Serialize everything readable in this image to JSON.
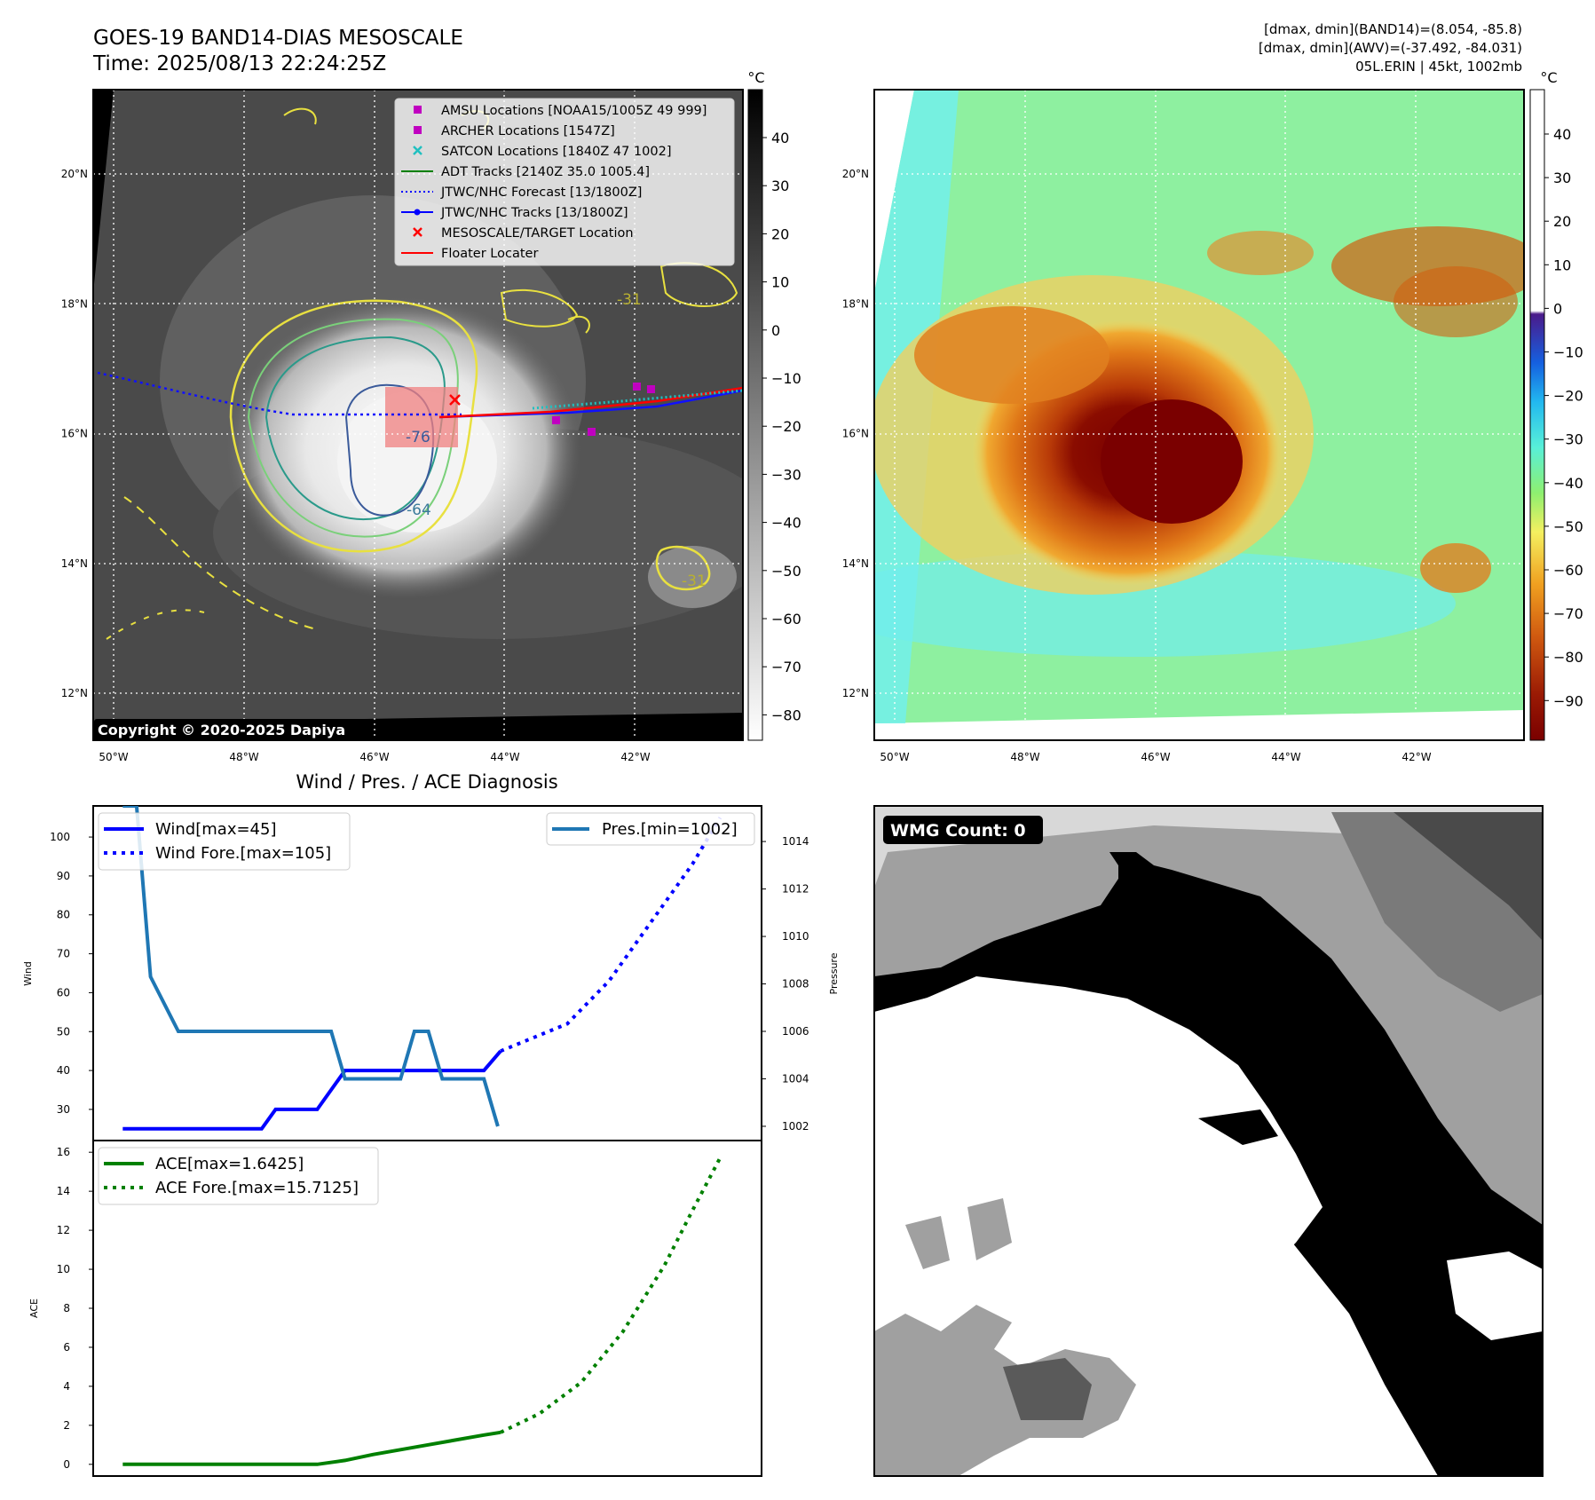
{
  "header": {
    "title_line1": "GOES-19 BAND14-DIAS MESOSCALE",
    "title_line2": "Time: 2025/08/13 22:24:25Z",
    "stats_line1": "[dmax, dmin](BAND14)=(8.054, -85.8)",
    "stats_line2": "[dmax, dmin](AWV)=(-37.492, -84.031)",
    "stats_line3": "05L.ERIN | 45kt, 1002mb"
  },
  "map_common": {
    "lon_labels": [
      "50°W",
      "48°W",
      "46°W",
      "44°W",
      "42°W"
    ],
    "lat_labels": [
      "20°N",
      "18°N",
      "16°N",
      "14°N",
      "12°N"
    ],
    "grid": true
  },
  "ir_map": {
    "copyright": "Copyright © 2020-2025 Dapiya",
    "colorbar_unit": "°C",
    "colorbar_ticks": [
      "40",
      "30",
      "20",
      "10",
      "0",
      "−10",
      "−20",
      "−30",
      "−40",
      "−50",
      "−60",
      "−70",
      "−80"
    ],
    "contour_labels": [
      "-64",
      "-31",
      "-31",
      "-76"
    ],
    "legend": [
      {
        "label": "AMSU Locations [NOAA15/1005Z 49 999]",
        "color": "#c000c0",
        "marker": "square"
      },
      {
        "label": "ARCHER Locations [1547Z]",
        "color": "#c000c0",
        "marker": "square"
      },
      {
        "label": "SATCON Locations [1840Z 47 1002]",
        "color": "#20c0c0",
        "marker": "x"
      },
      {
        "label": "ADT Tracks [2140Z 35.0 1005.4]",
        "color": "#008000",
        "marker": "line"
      },
      {
        "label": "JTWC/NHC Forecast [13/1800Z]",
        "color": "#0000ff",
        "marker": "dotted"
      },
      {
        "label": "JTWC/NHC Tracks [13/1800Z]",
        "color": "#0000ff",
        "marker": "line-dot"
      },
      {
        "label": "MESOSCALE/TARGET Location",
        "color": "#ff0000",
        "marker": "x"
      },
      {
        "label": "Floater Locater",
        "color": "#ff0000",
        "marker": "line"
      }
    ]
  },
  "color_map": {
    "colorbar_unit": "°C",
    "colorbar_ticks": [
      "40",
      "30",
      "20",
      "10",
      "0",
      "−10",
      "−20",
      "−30",
      "−40",
      "−50",
      "−60",
      "−70",
      "−80",
      "−90"
    ]
  },
  "wmg_panel": {
    "label": "WMG Count: 0"
  },
  "chart_data": [
    {
      "type": "line",
      "title": "Wind / Pres. / ACE Diagnosis",
      "ylabel": "Wind",
      "y2label": "Pressure",
      "ylim": [
        22,
        108
      ],
      "y2lim": [
        1001.4,
        1015.5
      ],
      "yticks": [
        30,
        40,
        50,
        60,
        70,
        80,
        90,
        100
      ],
      "y2ticks": [
        1002,
        1004,
        1006,
        1008,
        1010,
        1012,
        1014
      ],
      "x": [
        0,
        1,
        2,
        3,
        4,
        5,
        6,
        7,
        8,
        9,
        10,
        11,
        12,
        13,
        14,
        15,
        16,
        17,
        18,
        19,
        20,
        21,
        22
      ],
      "series": [
        {
          "name": "Wind[max=45]",
          "axis": "left",
          "style": "solid",
          "color": "#0000ff",
          "x": [
            1,
            6,
            6.5,
            8,
            8,
            9,
            14,
            14.6
          ],
          "y": [
            25,
            25,
            30,
            30,
            30,
            40,
            40,
            45
          ]
        },
        {
          "name": "Wind Fore.[max=105]",
          "axis": "left",
          "style": "dotted",
          "color": "#0000ff",
          "x": [
            14.6,
            17,
            18.5,
            20,
            21.5,
            22.5
          ],
          "y": [
            45,
            52,
            63,
            78,
            93,
            105
          ]
        },
        {
          "name": "Pres.[min=1002]",
          "axis": "right",
          "style": "solid",
          "color": "#1f77b4",
          "x": [
            1,
            1.5,
            2,
            3,
            4,
            5,
            6.5,
            7,
            8,
            8.5,
            9,
            10,
            11,
            11.5,
            12,
            12.5,
            13,
            14,
            14.5
          ],
          "y": [
            1015.5,
            1015.5,
            1008.3,
            1006,
            1006,
            1006,
            1006,
            1006,
            1006,
            1006,
            1004,
            1004,
            1004,
            1006,
            1006,
            1004,
            1004,
            1004,
            1002
          ]
        }
      ]
    },
    {
      "type": "line",
      "ylabel": "ACE",
      "ylim": [
        -0.6,
        16.6
      ],
      "yticks": [
        0,
        2,
        4,
        6,
        8,
        10,
        12,
        14,
        16
      ],
      "series": [
        {
          "name": "ACE[max=1.6425]",
          "style": "solid",
          "color": "#008000",
          "x": [
            1,
            3,
            5,
            6.5,
            8,
            9,
            10,
            12,
            14,
            14.6
          ],
          "y": [
            0,
            0,
            0,
            0,
            0,
            0.2,
            0.5,
            1.0,
            1.5,
            1.64
          ]
        },
        {
          "name": "ACE Fore.[max=15.7125]",
          "style": "dotted",
          "color": "#008000",
          "x": [
            14.6,
            16,
            17.5,
            19,
            20.5,
            21.5,
            22.5
          ],
          "y": [
            1.64,
            2.6,
            4.2,
            6.8,
            10.2,
            13.0,
            15.71
          ]
        }
      ]
    }
  ]
}
